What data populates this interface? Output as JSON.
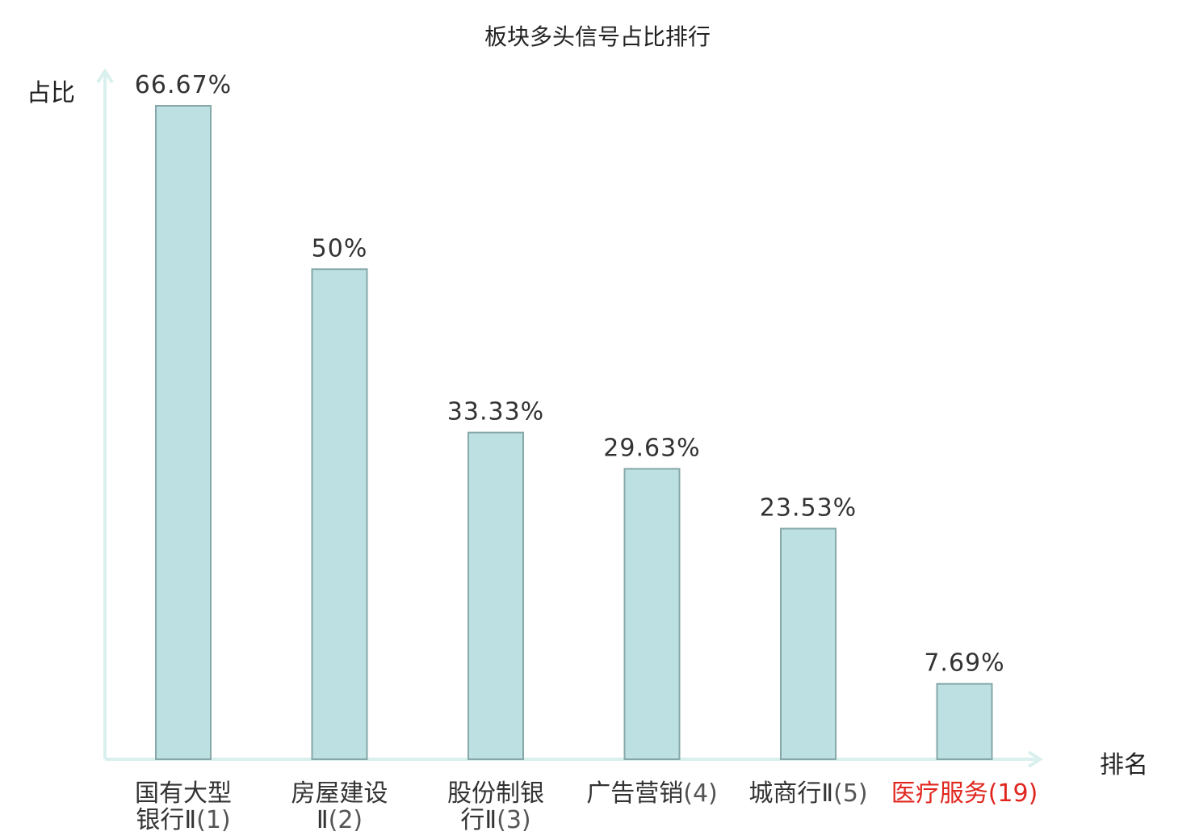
{
  "chart_data": {
    "type": "bar",
    "title": "板块多头信号占比排行",
    "xlabel": "排名",
    "ylabel": "占比",
    "categories": [
      {
        "line1": "国有大型",
        "line2": "银行Ⅱ",
        "rank": "(1)",
        "highlight": false
      },
      {
        "line1": "房屋建设",
        "line2": "Ⅱ",
        "rank": "(2)",
        "highlight": false
      },
      {
        "line1": "股份制银",
        "line2": "行Ⅱ",
        "rank": "(3)",
        "highlight": false
      },
      {
        "line1": "广告营销",
        "line2": "",
        "rank": "(4)",
        "highlight": false
      },
      {
        "line1": "城商行Ⅱ",
        "line2": "",
        "rank": "(5)",
        "highlight": false
      },
      {
        "line1": "医疗服务",
        "line2": "",
        "rank": "(19)",
        "highlight": true
      }
    ],
    "values": [
      66.67,
      50,
      33.33,
      29.63,
      23.53,
      7.69
    ],
    "value_labels": [
      "66.67%",
      "50%",
      "33.33%",
      "29.63%",
      "23.53%",
      "7.69%"
    ],
    "ylim": [
      0,
      66.67
    ],
    "grid": false,
    "legend": "none"
  },
  "colors": {
    "bar_fill": "#bde0e2",
    "bar_stroke": "#87a7a8",
    "axis": "#d9f0ee",
    "highlight": "#e0261e"
  }
}
